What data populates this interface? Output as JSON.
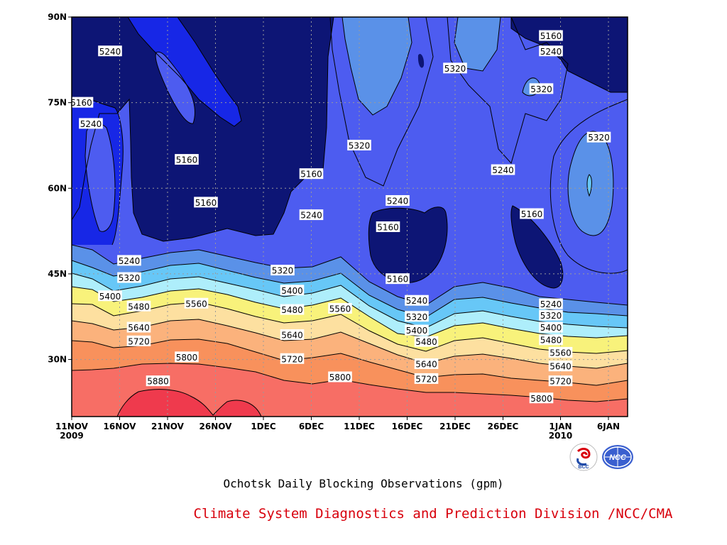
{
  "title": "Ochotsk Daily Blocking Observations (gpm)",
  "credit": "Climate System Diagnostics and Prediction Division /NCC/CMA",
  "logos": {
    "left_text": "BCC",
    "right_text": "NCC"
  },
  "chart_data": {
    "type": "heatmap",
    "subtype": "filled-contour time-latitude",
    "variable": "500hPa geopotential height",
    "units": "gpm",
    "x_range": [
      "2009-11-11",
      "2010-01-08"
    ],
    "y_range": [
      20,
      90
    ],
    "grid": true,
    "x_ticks": [
      {
        "date": "2009-11-11",
        "label": "11NOV",
        "sublabel": "2009"
      },
      {
        "date": "2009-11-16",
        "label": "16NOV"
      },
      {
        "date": "2009-11-21",
        "label": "21NOV"
      },
      {
        "date": "2009-11-26",
        "label": "26NOV"
      },
      {
        "date": "2009-12-01",
        "label": "1DEC"
      },
      {
        "date": "2009-12-06",
        "label": "6DEC"
      },
      {
        "date": "2009-12-11",
        "label": "11DEC"
      },
      {
        "date": "2009-12-16",
        "label": "16DEC"
      },
      {
        "date": "2009-12-21",
        "label": "21DEC"
      },
      {
        "date": "2009-12-26",
        "label": "26DEC"
      },
      {
        "date": "2010-01-01",
        "label": "1JAN",
        "sublabel": "2010"
      },
      {
        "date": "2010-01-06",
        "label": "6JAN"
      }
    ],
    "y_ticks": [
      {
        "lat": 30,
        "label": "30N"
      },
      {
        "lat": 45,
        "label": "45N"
      },
      {
        "lat": 60,
        "label": "60N"
      },
      {
        "lat": 75,
        "label": "75N"
      },
      {
        "lat": 90,
        "label": "90N"
      }
    ],
    "levels": [
      5160,
      5240,
      5320,
      5400,
      5480,
      5560,
      5640,
      5720,
      5800,
      5880
    ],
    "colors": [
      "#0d1575",
      "#1727e6",
      "#4d5cf0",
      "#5a91e8",
      "#67c7f7",
      "#aeeefb",
      "#f8f27b",
      "#fde0a0",
      "#fbb27c",
      "#f8915c",
      "#f76e65",
      "#ef3a4d"
    ],
    "contour_labels": [
      {
        "date": "2009-11-15",
        "lat": 84,
        "value": 5240
      },
      {
        "date": "2009-11-12",
        "lat": 75,
        "value": 5160
      },
      {
        "date": "2009-11-13",
        "lat": 71.3,
        "value": 5240
      },
      {
        "date": "2009-11-23",
        "lat": 65,
        "value": 5160
      },
      {
        "date": "2009-11-25",
        "lat": 57.5,
        "value": 5160
      },
      {
        "date": "2009-12-06",
        "lat": 62.5,
        "value": 5160
      },
      {
        "date": "2009-12-06",
        "lat": 55.3,
        "value": 5240
      },
      {
        "date": "2009-12-11",
        "lat": 67.5,
        "value": 5320
      },
      {
        "date": "2009-12-15",
        "lat": 57.8,
        "value": 5240
      },
      {
        "date": "2009-12-14",
        "lat": 53.2,
        "value": 5160
      },
      {
        "date": "2009-12-21",
        "lat": 81,
        "value": 5320
      },
      {
        "date": "2009-12-31",
        "lat": 86.7,
        "value": 5160
      },
      {
        "date": "2009-12-31",
        "lat": 84,
        "value": 5240
      },
      {
        "date": "2009-12-30",
        "lat": 77.4,
        "value": 5320
      },
      {
        "date": "2009-12-26",
        "lat": 63.2,
        "value": 5240
      },
      {
        "date": "2009-12-29",
        "lat": 55.5,
        "value": 5160
      },
      {
        "date": "2010-01-05",
        "lat": 68.9,
        "value": 5320
      },
      {
        "date": "2009-11-17",
        "lat": 47.3,
        "value": 5240
      },
      {
        "date": "2009-11-17",
        "lat": 44.3,
        "value": 5320
      },
      {
        "date": "2009-11-15",
        "lat": 41.1,
        "value": 5400
      },
      {
        "date": "2009-11-18",
        "lat": 39.3,
        "value": 5480
      },
      {
        "date": "2009-11-24",
        "lat": 39.8,
        "value": 5560
      },
      {
        "date": "2009-11-18",
        "lat": 35.6,
        "value": 5640
      },
      {
        "date": "2009-11-18",
        "lat": 33.2,
        "value": 5720
      },
      {
        "date": "2009-11-23",
        "lat": 30.4,
        "value": 5800
      },
      {
        "date": "2009-11-20",
        "lat": 26.2,
        "value": 5880
      },
      {
        "date": "2009-12-03",
        "lat": 45.6,
        "value": 5320
      },
      {
        "date": "2009-12-04",
        "lat": 42.1,
        "value": 5400
      },
      {
        "date": "2009-12-04",
        "lat": 38.7,
        "value": 5480
      },
      {
        "date": "2009-12-09",
        "lat": 38.9,
        "value": 5560
      },
      {
        "date": "2009-12-04",
        "lat": 34.3,
        "value": 5640
      },
      {
        "date": "2009-12-04",
        "lat": 30.1,
        "value": 5720
      },
      {
        "date": "2009-12-09",
        "lat": 26.9,
        "value": 5800
      },
      {
        "date": "2009-12-15",
        "lat": 44.1,
        "value": 5160
      },
      {
        "date": "2009-12-17",
        "lat": 40.3,
        "value": 5240
      },
      {
        "date": "2009-12-17",
        "lat": 37.5,
        "value": 5320
      },
      {
        "date": "2009-12-17",
        "lat": 35.1,
        "value": 5400
      },
      {
        "date": "2009-12-18",
        "lat": 33.1,
        "value": 5480
      },
      {
        "date": "2009-12-18",
        "lat": 29.2,
        "value": 5640
      },
      {
        "date": "2009-12-18",
        "lat": 26.6,
        "value": 5720
      },
      {
        "date": "2009-12-31",
        "lat": 39.7,
        "value": 5240
      },
      {
        "date": "2009-12-31",
        "lat": 37.7,
        "value": 5320
      },
      {
        "date": "2009-12-31",
        "lat": 35.6,
        "value": 5400
      },
      {
        "date": "2009-12-31",
        "lat": 33.4,
        "value": 5480
      },
      {
        "date": "2010-01-01",
        "lat": 31.2,
        "value": 5560
      },
      {
        "date": "2010-01-01",
        "lat": 28.8,
        "value": 5640
      },
      {
        "date": "2010-01-01",
        "lat": 26.2,
        "value": 5720
      },
      {
        "date": "2009-12-30",
        "lat": 23.2,
        "value": 5800
      }
    ]
  }
}
